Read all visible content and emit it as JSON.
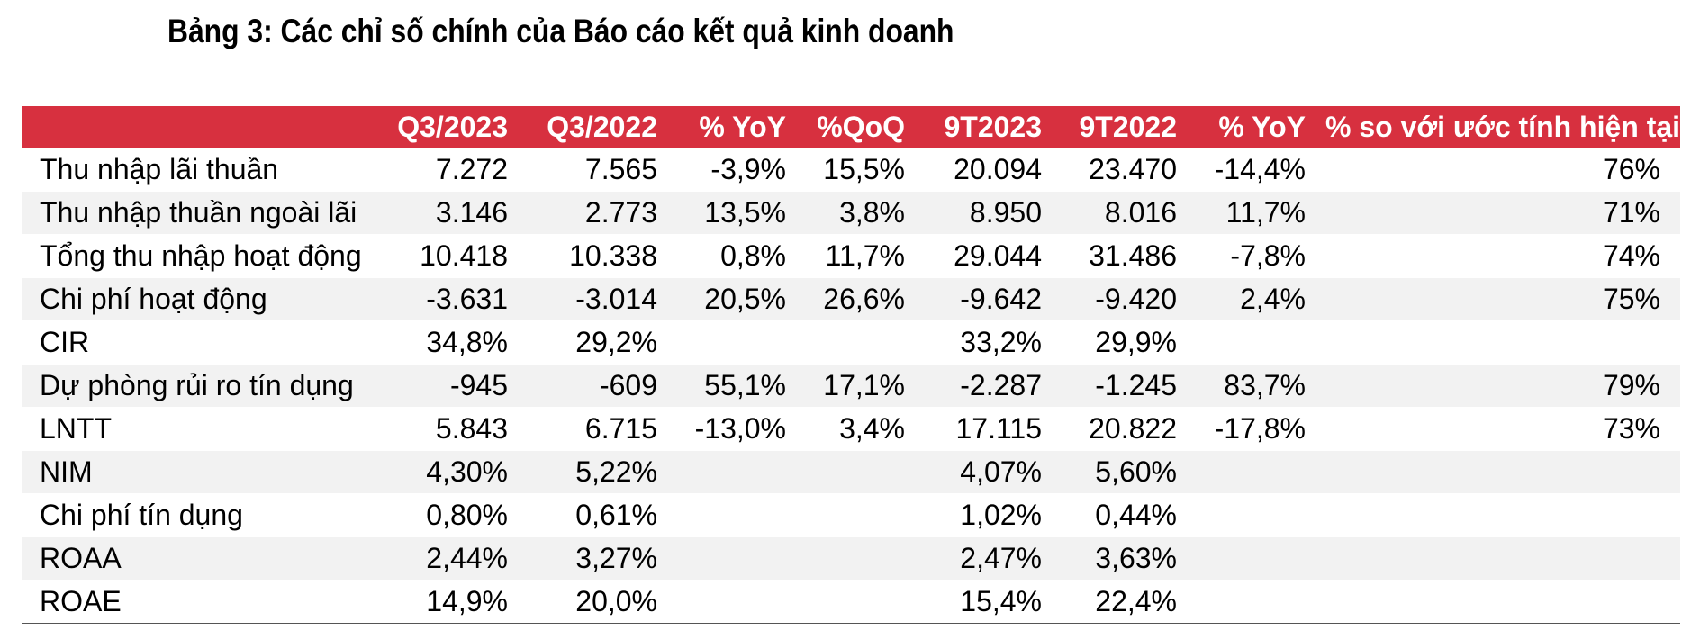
{
  "title": "Bảng 3: Các chỉ số chính của Báo cáo kết quả kinh doanh",
  "table": {
    "headers": [
      "",
      "Q3/2023",
      "Q3/2022",
      "% YoY",
      "%QoQ",
      "9T2023",
      "9T2022",
      "% YoY",
      "% so với ước tính hiện tại"
    ],
    "rows": [
      [
        "Thu nhập lãi thuần",
        "7.272",
        "7.565",
        "-3,9%",
        "15,5%",
        "20.094",
        "23.470",
        "-14,4%",
        "76%"
      ],
      [
        "Thu nhập thuần ngoài lãi",
        "3.146",
        "2.773",
        "13,5%",
        "3,8%",
        "8.950",
        "8.016",
        "11,7%",
        "71%"
      ],
      [
        "Tổng thu nhập hoạt động",
        "10.418",
        "10.338",
        "0,8%",
        "11,7%",
        "29.044",
        "31.486",
        "-7,8%",
        "74%"
      ],
      [
        "Chi phí hoạt động",
        "-3.631",
        "-3.014",
        "20,5%",
        "26,6%",
        "-9.642",
        "-9.420",
        "2,4%",
        "75%"
      ],
      [
        "CIR",
        "34,8%",
        "29,2%",
        "",
        "",
        "33,2%",
        "29,9%",
        "",
        ""
      ],
      [
        "Dự phòng rủi ro tín dụng",
        "-945",
        "-609",
        "55,1%",
        "17,1%",
        "-2.287",
        "-1.245",
        "83,7%",
        "79%"
      ],
      [
        "LNTT",
        "5.843",
        "6.715",
        "-13,0%",
        "3,4%",
        "17.115",
        "20.822",
        "-17,8%",
        "73%"
      ],
      [
        "NIM",
        "4,30%",
        "5,22%",
        "",
        "",
        "4,07%",
        "5,60%",
        "",
        ""
      ],
      [
        "Chi phí tín dụng",
        "0,80%",
        "0,61%",
        "",
        "",
        "1,02%",
        "0,44%",
        "",
        ""
      ],
      [
        "ROAA",
        "2,44%",
        "3,27%",
        "",
        "",
        "2,47%",
        "3,63%",
        "",
        ""
      ],
      [
        "ROAE",
        "14,9%",
        "20,0%",
        "",
        "",
        "15,4%",
        "22,4%",
        "",
        ""
      ]
    ]
  },
  "colors": {
    "header_bg": "#d7303f",
    "header_text": "#ffffff",
    "stripe": "#f2f2f2"
  }
}
